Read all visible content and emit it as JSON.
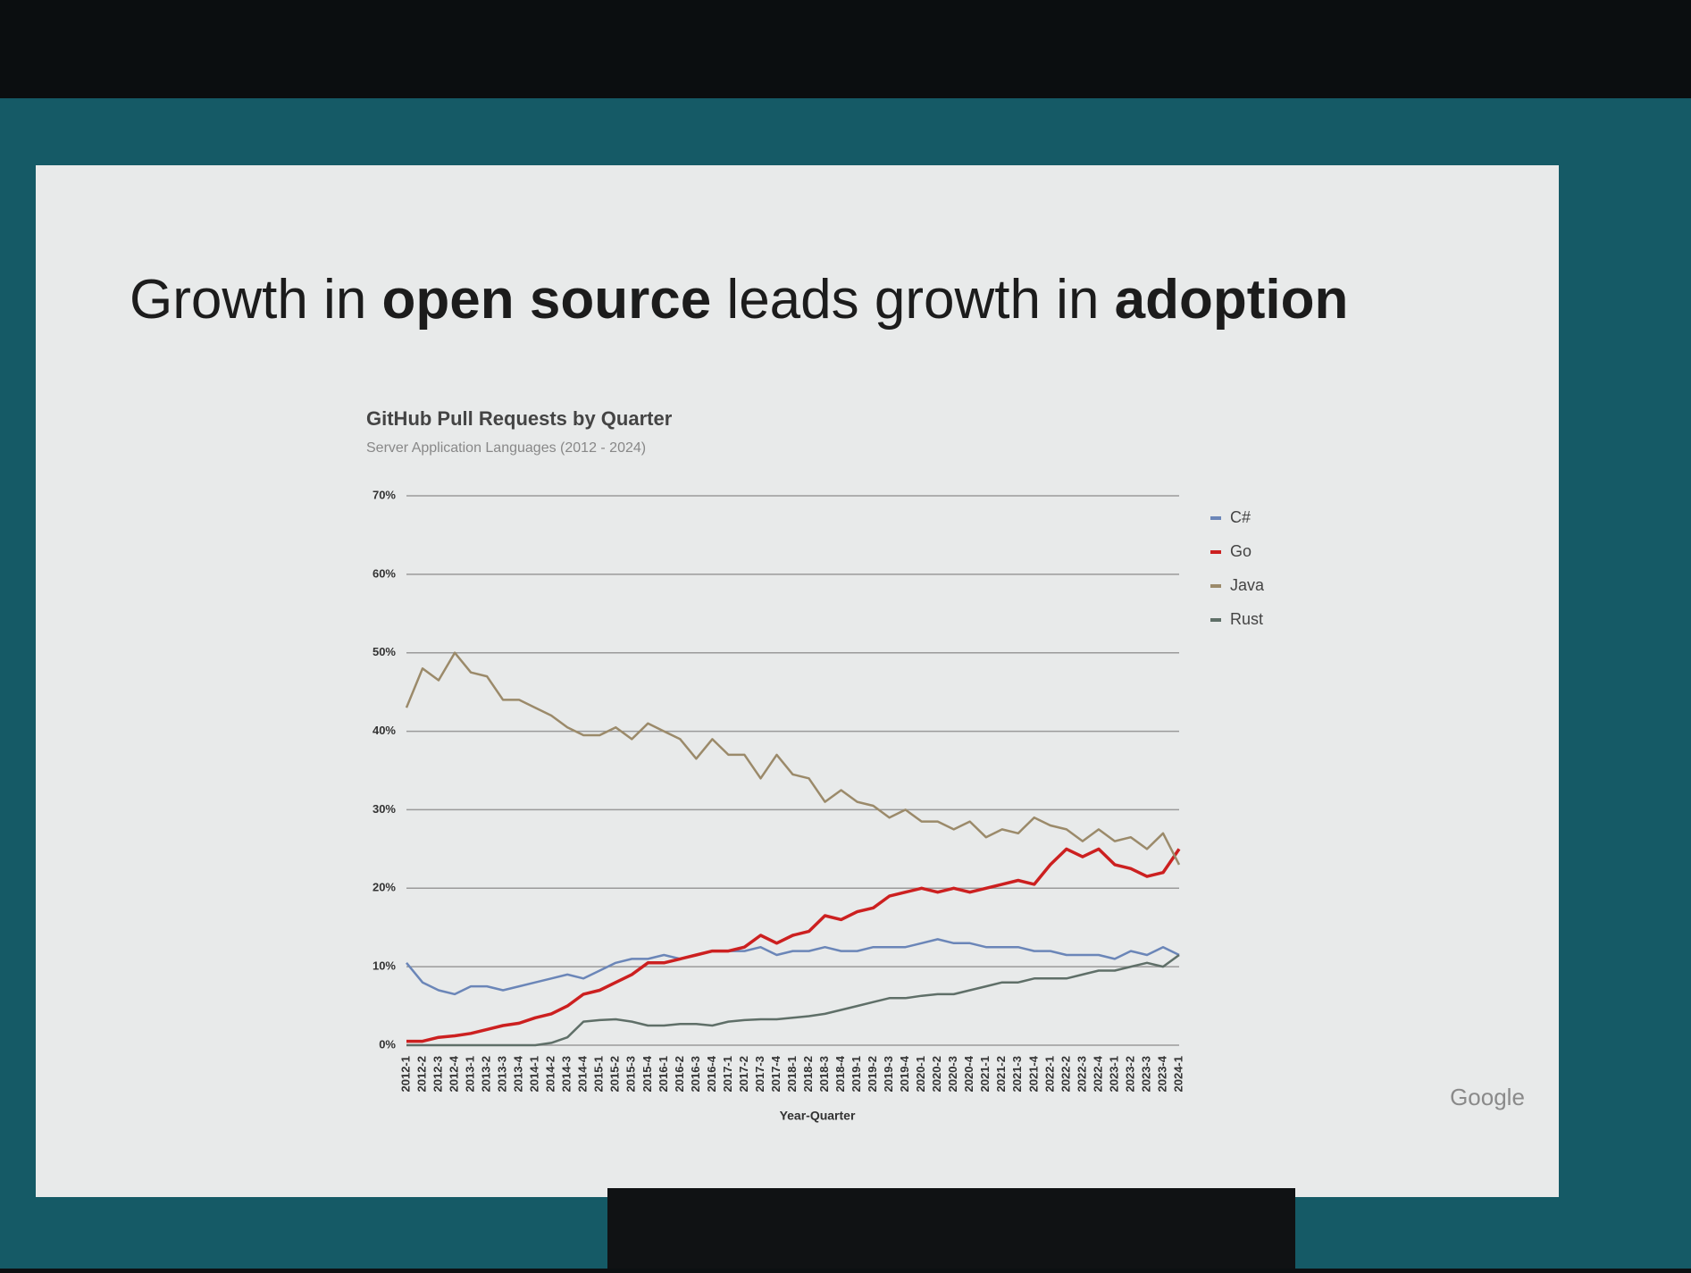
{
  "slide": {
    "title_parts": [
      {
        "text": "Growth in ",
        "bold": false
      },
      {
        "text": "open source",
        "bold": true
      },
      {
        "text": " leads growth in ",
        "bold": false
      },
      {
        "text": "adoption",
        "bold": true
      }
    ],
    "logo": "Google"
  },
  "chart_data": {
    "type": "line",
    "title": "GitHub Pull Requests by Quarter",
    "subtitle": "Server Application Languages (2012 - 2024)",
    "x_label": "Year-Quarter",
    "categories": [
      "2012-1",
      "2012-2",
      "2012-3",
      "2012-4",
      "2013-1",
      "2013-2",
      "2013-3",
      "2013-4",
      "2014-1",
      "2014-2",
      "2014-3",
      "2014-4",
      "2015-1",
      "2015-2",
      "2015-3",
      "2015-4",
      "2016-1",
      "2016-2",
      "2016-3",
      "2016-4",
      "2017-1",
      "2017-2",
      "2017-3",
      "2017-4",
      "2018-1",
      "2018-2",
      "2018-3",
      "2018-4",
      "2019-1",
      "2019-2",
      "2019-3",
      "2019-4",
      "2020-1",
      "2020-2",
      "2020-3",
      "2020-4",
      "2021-1",
      "2021-2",
      "2021-3",
      "2021-4",
      "2022-1",
      "2022-2",
      "2022-3",
      "2022-4",
      "2023-1",
      "2023-2",
      "2023-3",
      "2023-4",
      "2024-1"
    ],
    "series": [
      {
        "name": "C#",
        "color": "#6b86b8",
        "values": [
          10.5,
          8,
          7,
          6.5,
          7.5,
          7.5,
          7,
          7.5,
          8,
          8.5,
          9,
          8.5,
          9.5,
          10.5,
          11,
          11,
          11.5,
          11,
          11.5,
          12,
          12,
          12,
          12.5,
          11.5,
          12,
          12,
          12.5,
          12,
          12,
          12.5,
          12.5,
          12.5,
          13,
          13.5,
          13,
          13,
          12.5,
          12.5,
          12.5,
          12,
          12,
          11.5,
          11.5,
          11.5,
          11,
          12,
          11.5,
          12.5,
          11.5
        ]
      },
      {
        "name": "Go",
        "color": "#cc2020",
        "values": [
          0.5,
          0.5,
          1,
          1.2,
          1.5,
          2,
          2.5,
          2.8,
          3.5,
          4,
          5,
          6.5,
          7,
          8,
          9,
          10.5,
          10.5,
          11,
          11.5,
          12,
          12,
          12.5,
          14,
          13,
          14,
          14.5,
          16.5,
          16,
          17,
          17.5,
          19,
          19.5,
          20,
          19.5,
          20,
          19.5,
          20,
          20.5,
          21,
          20.5,
          23,
          25,
          24,
          25,
          23,
          22.5,
          21.5,
          22,
          25
        ]
      },
      {
        "name": "Java",
        "color": "#9b8a6a",
        "values": [
          43,
          48,
          46.5,
          50,
          47.5,
          47,
          44,
          44,
          43,
          42,
          40.5,
          39.5,
          39.5,
          40.5,
          39,
          41,
          40,
          39,
          36.5,
          39,
          37,
          37,
          34,
          37,
          34.5,
          34,
          31,
          32.5,
          31,
          30.5,
          29,
          30,
          28.5,
          28.5,
          27.5,
          28.5,
          26.5,
          27.5,
          27,
          29,
          28,
          27.5,
          26,
          27.5,
          26,
          26.5,
          25,
          27,
          23
        ]
      },
      {
        "name": "Rust",
        "color": "#5f6f68",
        "values": [
          0,
          0,
          0,
          0,
          0,
          0,
          0,
          0,
          0,
          0.3,
          1,
          3,
          3.2,
          3.3,
          3,
          2.5,
          2.5,
          2.7,
          2.7,
          2.5,
          3,
          3.2,
          3.3,
          3.3,
          3.5,
          3.7,
          4,
          4.5,
          5,
          5.5,
          6,
          6,
          6.3,
          6.5,
          6.5,
          7,
          7.5,
          8,
          8,
          8.5,
          8.5,
          8.5,
          9,
          9.5,
          9.5,
          10,
          10.5,
          10,
          11.5
        ]
      }
    ],
    "ylim": [
      0,
      70
    ],
    "yticks": [
      {
        "value": 0,
        "label": "0%"
      },
      {
        "value": 10,
        "label": "10%"
      },
      {
        "value": 20,
        "label": "20%"
      },
      {
        "value": 30,
        "label": "30%"
      },
      {
        "value": 40,
        "label": "40%"
      },
      {
        "value": 50,
        "label": "50%"
      },
      {
        "value": 60,
        "label": "60%"
      },
      {
        "value": 70,
        "label": "70%"
      }
    ],
    "grid": true,
    "legend": "right"
  }
}
